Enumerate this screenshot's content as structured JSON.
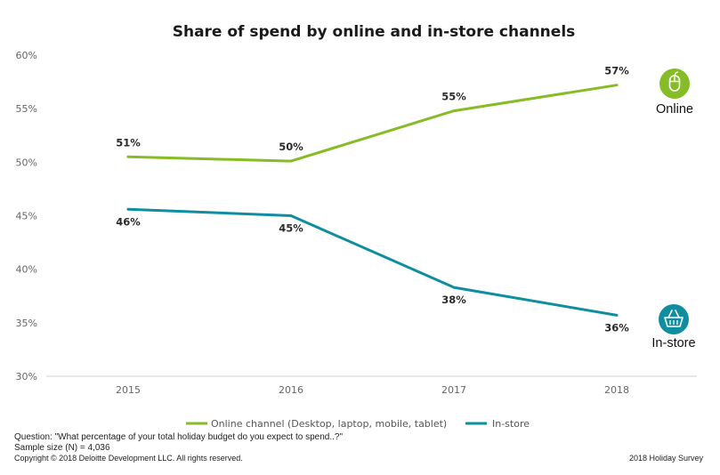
{
  "chart_data": {
    "type": "line",
    "title": "Share of spend by online and in-store channels",
    "xlabel": "",
    "ylabel": "",
    "categories": [
      "2015",
      "2016",
      "2017",
      "2018"
    ],
    "ylim": [
      30,
      60
    ],
    "yticks": [
      "30%",
      "35%",
      "40%",
      "45%",
      "50%",
      "55%",
      "60%"
    ],
    "grid": false,
    "legend_position": "bottom",
    "series": [
      {
        "name": "Online channel (Desktop, laptop, mobile, tablet)",
        "color": "#86bc25",
        "values": [
          50.5,
          50.1,
          54.8,
          57.2
        ],
        "labels": [
          "51%",
          "50%",
          "55%",
          "57%"
        ],
        "label_position": "above",
        "end_label": "Online",
        "end_icon": "mouse-icon"
      },
      {
        "name": "In-store",
        "color": "#0f8ea0",
        "values": [
          45.6,
          45.0,
          38.3,
          35.7
        ],
        "labels": [
          "46%",
          "45%",
          "38%",
          "36%"
        ],
        "label_position": "below",
        "end_label": "In-store",
        "end_icon": "shopping-basket-icon"
      }
    ]
  },
  "footer": {
    "question": "Question: \"What percentage of your total holiday budget do you expect to spend..?\"",
    "sample": "Sample size (N) = 4,036",
    "copyright": "Copyright © 2018 Deloitte Development LLC. All rights reserved.",
    "survey": "2018 Holiday Survey"
  }
}
